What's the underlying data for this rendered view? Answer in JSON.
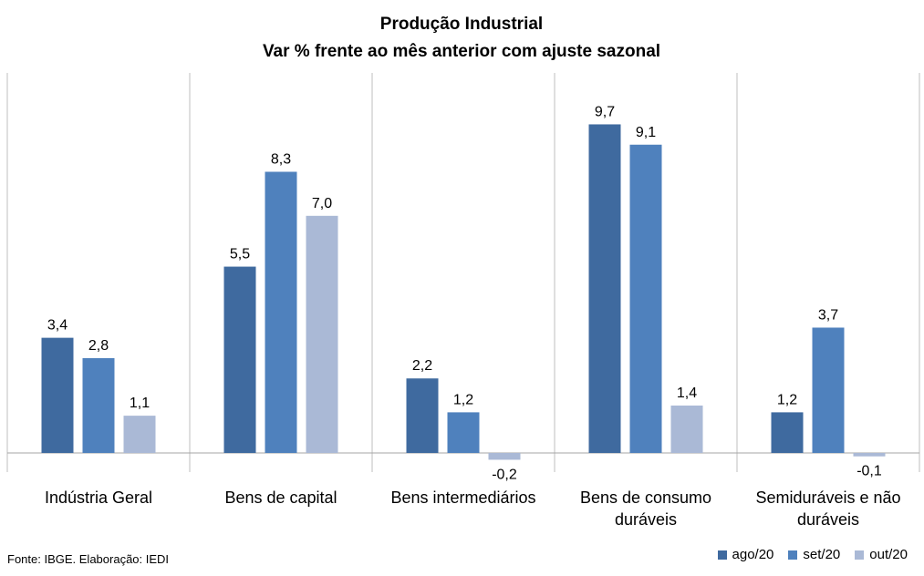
{
  "chart_data": {
    "type": "bar",
    "title": "Produção Industrial",
    "subtitle": "Var % frente ao mês anterior com ajuste sazonal",
    "categories": [
      [
        "Indústria Geral"
      ],
      [
        "Bens de capital"
      ],
      [
        "Bens intermediários"
      ],
      [
        "Bens de consumo",
        "duráveis"
      ],
      [
        "Semiduráveis e não",
        "duráveis"
      ]
    ],
    "series": [
      {
        "name": "ago/20",
        "color": "#3F6A9F",
        "values": [
          3.4,
          5.5,
          2.2,
          9.7,
          1.2
        ],
        "labels": [
          "3,4",
          "5,5",
          "2,2",
          "9,7",
          "1,2"
        ]
      },
      {
        "name": "set/20",
        "color": "#4F81BD",
        "values": [
          2.8,
          8.3,
          1.2,
          9.1,
          3.7
        ],
        "labels": [
          "2,8",
          "8,3",
          "1,2",
          "9,1",
          "3,7"
        ]
      },
      {
        "name": "out/20",
        "color": "#AAB9D6",
        "values": [
          1.1,
          7.0,
          -0.2,
          1.4,
          -0.1
        ],
        "labels": [
          "1,1",
          "7,0",
          "-0,2",
          "1,4",
          "-0,1"
        ]
      }
    ],
    "ylim": [
      -0.3,
      10.5
    ],
    "grid": false,
    "legend_position": "bottom-right"
  },
  "footer": {
    "source": "Fonte: IBGE. Elaboração: IEDI"
  }
}
